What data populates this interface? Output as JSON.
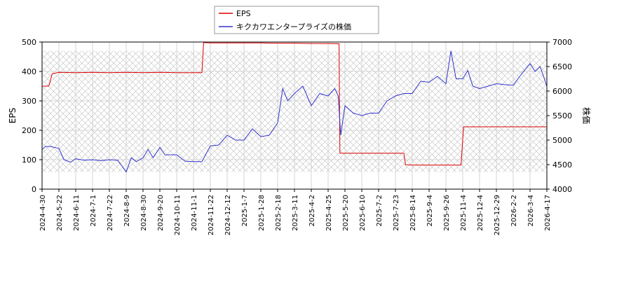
{
  "chart_data": {
    "type": "line",
    "x_ticks": [
      "2024-4-30",
      "2024-5-22",
      "2024-6-11",
      "2024-7-1",
      "2024-7-22",
      "2024-8-9",
      "2024-8-30",
      "2024-9-20",
      "2024-10-11",
      "2024-11-1",
      "2024-11-22",
      "2024-12-12",
      "2025-1-7",
      "2025-1-28",
      "2025-2-18",
      "2025-3-11",
      "2025-4-2",
      "2025-4-25",
      "2025-5-20",
      "2025-6-10",
      "2025-7-2",
      "2025-7-23",
      "2025-8-14",
      "2025-9-4",
      "2025-9-26",
      "2025-11-4",
      "2025-12-4",
      "2025-12-29",
      "2026-2-2",
      "2026-3-4",
      "2026-4-17"
    ],
    "ylabel_left": "EPS",
    "ylabel_right": "株価",
    "ylim_left": [
      0,
      500
    ],
    "yticks_left": [
      0,
      100,
      200,
      300,
      400,
      500
    ],
    "ylim_right": [
      4000,
      7000
    ],
    "yticks_right": [
      4000,
      4500,
      5000,
      5500,
      6000,
      6500,
      7000
    ],
    "grid": true,
    "legend_position": "top-center",
    "series": [
      {
        "name": "EPS",
        "axis": "left",
        "color": "#dd0000",
        "points": [
          [
            0,
            350
          ],
          [
            0.4,
            350
          ],
          [
            0.6,
            392
          ],
          [
            1,
            397
          ],
          [
            2,
            396
          ],
          [
            3,
            397
          ],
          [
            4,
            396
          ],
          [
            5,
            397
          ],
          [
            6,
            396
          ],
          [
            7,
            397
          ],
          [
            8,
            396
          ],
          [
            9,
            396
          ],
          [
            9.5,
            396
          ],
          [
            9.6,
            498
          ],
          [
            10,
            497
          ],
          [
            11,
            497
          ],
          [
            12,
            497
          ],
          [
            13,
            497
          ],
          [
            14,
            496
          ],
          [
            15,
            496
          ],
          [
            16,
            495
          ],
          [
            17,
            495
          ],
          [
            17.65,
            494
          ],
          [
            17.7,
            122
          ],
          [
            18,
            122
          ],
          [
            19,
            122
          ],
          [
            20,
            122
          ],
          [
            21,
            122
          ],
          [
            21.5,
            122
          ],
          [
            21.6,
            83
          ],
          [
            22,
            82
          ],
          [
            23,
            82
          ],
          [
            24,
            82
          ],
          [
            24.9,
            82
          ],
          [
            25.05,
            212
          ],
          [
            26,
            212
          ],
          [
            27,
            212
          ],
          [
            28,
            212
          ],
          [
            29,
            212
          ],
          [
            30,
            212
          ]
        ]
      },
      {
        "name": "キクカワエンタープライズの株価",
        "axis": "right",
        "color": "#3333cc",
        "points": [
          [
            0,
            4810
          ],
          [
            0.2,
            4870
          ],
          [
            0.5,
            4870
          ],
          [
            1,
            4830
          ],
          [
            1.3,
            4600
          ],
          [
            1.7,
            4550
          ],
          [
            2,
            4620
          ],
          [
            2.5,
            4590
          ],
          [
            3,
            4600
          ],
          [
            3.5,
            4580
          ],
          [
            4,
            4600
          ],
          [
            4.5,
            4590
          ],
          [
            5,
            4350
          ],
          [
            5.3,
            4640
          ],
          [
            5.6,
            4560
          ],
          [
            6,
            4640
          ],
          [
            6.3,
            4810
          ],
          [
            6.6,
            4640
          ],
          [
            7,
            4850
          ],
          [
            7.3,
            4700
          ],
          [
            8,
            4700
          ],
          [
            8.5,
            4570
          ],
          [
            9,
            4560
          ],
          [
            9.5,
            4560
          ],
          [
            10,
            4880
          ],
          [
            10.5,
            4900
          ],
          [
            11,
            5100
          ],
          [
            11.5,
            5000
          ],
          [
            12,
            5000
          ],
          [
            12.5,
            5230
          ],
          [
            13,
            5070
          ],
          [
            13.5,
            5100
          ],
          [
            14,
            5350
          ],
          [
            14.3,
            6050
          ],
          [
            14.6,
            5800
          ],
          [
            15,
            5950
          ],
          [
            15.5,
            6100
          ],
          [
            16,
            5700
          ],
          [
            16.5,
            5950
          ],
          [
            17,
            5900
          ],
          [
            17.4,
            6050
          ],
          [
            17.6,
            5900
          ],
          [
            17.75,
            5100
          ],
          [
            18,
            5700
          ],
          [
            18.5,
            5550
          ],
          [
            19,
            5500
          ],
          [
            19.5,
            5550
          ],
          [
            20,
            5550
          ],
          [
            20.5,
            5800
          ],
          [
            21,
            5900
          ],
          [
            21.5,
            5950
          ],
          [
            22,
            5950
          ],
          [
            22.5,
            6200
          ],
          [
            23,
            6180
          ],
          [
            23.5,
            6300
          ],
          [
            24,
            6150
          ],
          [
            24.3,
            6820
          ],
          [
            24.6,
            6250
          ],
          [
            25,
            6250
          ],
          [
            25.3,
            6420
          ],
          [
            25.6,
            6100
          ],
          [
            26,
            6050
          ],
          [
            26.5,
            6100
          ],
          [
            27,
            6150
          ],
          [
            27.5,
            6130
          ],
          [
            28,
            6120
          ],
          [
            28.5,
            6350
          ],
          [
            29,
            6560
          ],
          [
            29.3,
            6400
          ],
          [
            29.6,
            6500
          ],
          [
            30,
            6100
          ]
        ]
      }
    ]
  }
}
